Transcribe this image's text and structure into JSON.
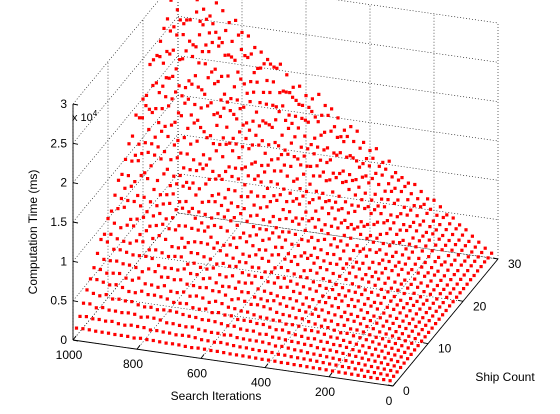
{
  "chart_data": {
    "type": "scatter",
    "xlabel": "Search Iterations",
    "ylabel": "Ship Count",
    "zlabel": "Computation Time (ms)",
    "z_multiplier_base": "x 10",
    "z_multiplier_exp": "4",
    "xlim": [
      0,
      1000
    ],
    "ylim": [
      0,
      30
    ],
    "zlim": [
      0,
      30000
    ],
    "x_ticks": [
      "0",
      "200",
      "400",
      "600",
      "800",
      "1000"
    ],
    "y_ticks": [
      "0",
      "10",
      "20",
      "30"
    ],
    "z_ticks": [
      "0",
      "0.5",
      "1",
      "1.5",
      "2",
      "2.5",
      "3"
    ],
    "marker_color": "#ff0000",
    "marker": "dot",
    "grid": true,
    "series": [
      {
        "description_model": "z = x * y",
        "x_step": 20,
        "y_step": 1,
        "x_range": [
          20,
          1000
        ],
        "y_range": [
          1,
          30
        ],
        "z_max": 30000
      }
    ]
  }
}
